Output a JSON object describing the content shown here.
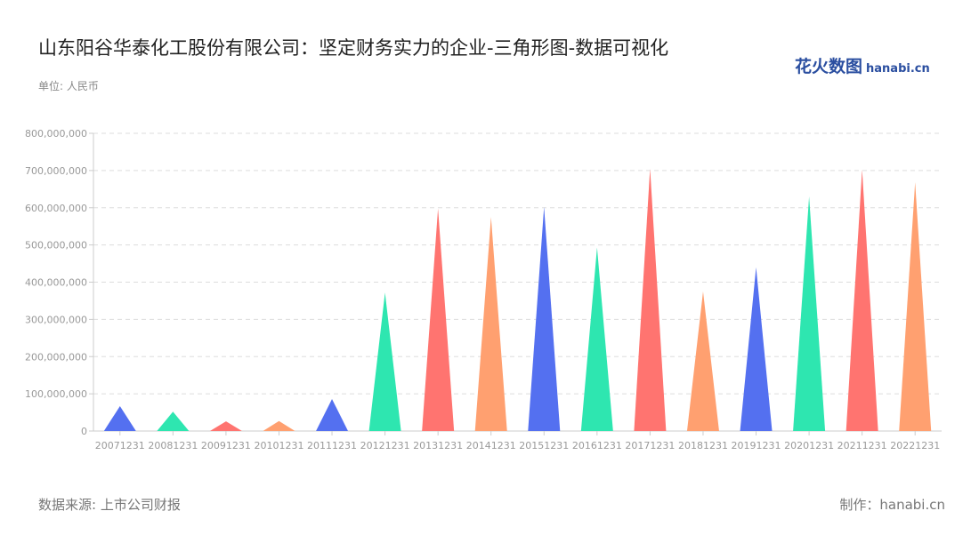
{
  "header": {
    "title": "山东阳谷华泰化工股份有限公司：坚定财务实力的企业-三角形图-数据可视化",
    "unit": "单位: 人民币",
    "logo": "花火数图",
    "logo_sub": "hanabi.cn"
  },
  "footer": {
    "source": "数据来源: 上市公司财报",
    "maker": "制作：hanabi.cn"
  },
  "chart_data": {
    "type": "bar",
    "mark": "triangle",
    "categories": [
      "20071231",
      "20081231",
      "20091231",
      "20101231",
      "20111231",
      "20121231",
      "20131231",
      "20141231",
      "20151231",
      "20161231",
      "20171231",
      "20181231",
      "20191231",
      "20201231",
      "20211231",
      "20221231"
    ],
    "values": [
      67000000,
      52000000,
      26000000,
      27000000,
      86000000,
      372000000,
      598000000,
      575000000,
      602000000,
      493000000,
      705000000,
      375000000,
      440000000,
      630000000,
      702000000,
      668000000
    ],
    "ylim": [
      0,
      800000000
    ],
    "yticks": [
      "0",
      "100,000,000",
      "200,000,000",
      "300,000,000",
      "400,000,000",
      "500,000,000",
      "600,000,000",
      "700,000,000",
      "800,000,000"
    ],
    "grid": true,
    "colors": [
      "#5470f0",
      "#2ee6b0",
      "#ff7470",
      "#ffa070"
    ]
  }
}
